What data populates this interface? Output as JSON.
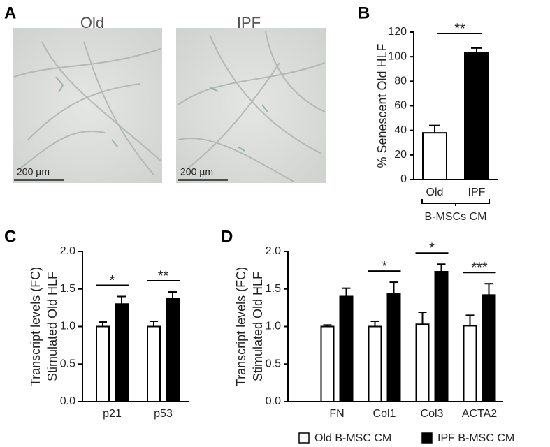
{
  "panel_a": {
    "label": "A",
    "images": [
      {
        "title": "Old",
        "scale_bar": "200 µm"
      },
      {
        "title": "IPF",
        "scale_bar": "200 µm"
      }
    ]
  },
  "chart_data": [
    {
      "type": "bar",
      "panel": "B",
      "ylabel": [
        "% Senescent Old HLF"
      ],
      "categories": [
        "Old",
        "IPF"
      ],
      "values": [
        38,
        103
      ],
      "errors": [
        6,
        4
      ],
      "colors": [
        "#ffffff",
        "#000000"
      ],
      "ylim": [
        0,
        120
      ],
      "yticks": [
        0,
        20,
        40,
        60,
        80,
        100,
        120
      ],
      "significance": "**",
      "group_label": "B-MSCs CM"
    },
    {
      "type": "grouped_bar",
      "panel": "C",
      "ylabel": [
        "Transcript levels (FC)",
        "Stimulated Old HLF"
      ],
      "categories": [
        "p21",
        "p53"
      ],
      "series": [
        {
          "name": "Old B-MSC CM",
          "color": "#ffffff",
          "values": [
            1.0,
            1.0
          ],
          "errors": [
            0.06,
            0.07
          ]
        },
        {
          "name": "IPF B-MSC CM",
          "color": "#000000",
          "values": [
            1.3,
            1.37
          ],
          "errors": [
            0.1,
            0.09
          ]
        }
      ],
      "ylim": [
        0,
        2
      ],
      "yticks": [
        {
          "value": 0,
          "label": "0.0"
        },
        {
          "value": 0.5,
          "label": "0.5"
        },
        {
          "value": 1,
          "label": "1.0"
        },
        {
          "value": 1.5,
          "label": "1.5"
        },
        {
          "value": 2,
          "label": "2.0"
        }
      ],
      "significance": [
        "*",
        "**"
      ]
    },
    {
      "type": "grouped_bar",
      "panel": "D",
      "ylabel": [
        "Transcript levels (FC)",
        "Stimulated Old HLF"
      ],
      "categories": [
        "FN",
        "Col1",
        "Col3",
        "ACTA2"
      ],
      "series": [
        {
          "name": "Old B-MSC CM",
          "color": "#ffffff",
          "values": [
            1.0,
            1.0,
            1.03,
            1.01
          ],
          "errors": [
            0.02,
            0.07,
            0.16,
            0.14
          ]
        },
        {
          "name": "IPF B-MSC CM",
          "color": "#000000",
          "values": [
            1.4,
            1.44,
            1.73,
            1.42
          ],
          "errors": [
            0.11,
            0.15,
            0.1,
            0.15
          ]
        }
      ],
      "ylim": [
        0,
        2
      ],
      "yticks": [
        {
          "value": 0,
          "label": "0.0"
        },
        {
          "value": 0.5,
          "label": "0.5"
        },
        {
          "value": 1,
          "label": "1.0"
        },
        {
          "value": 1.5,
          "label": "1.5"
        },
        {
          "value": 2,
          "label": "2.0"
        }
      ],
      "significance": [
        null,
        "*",
        "*",
        "***"
      ],
      "legend": "bottom"
    }
  ]
}
